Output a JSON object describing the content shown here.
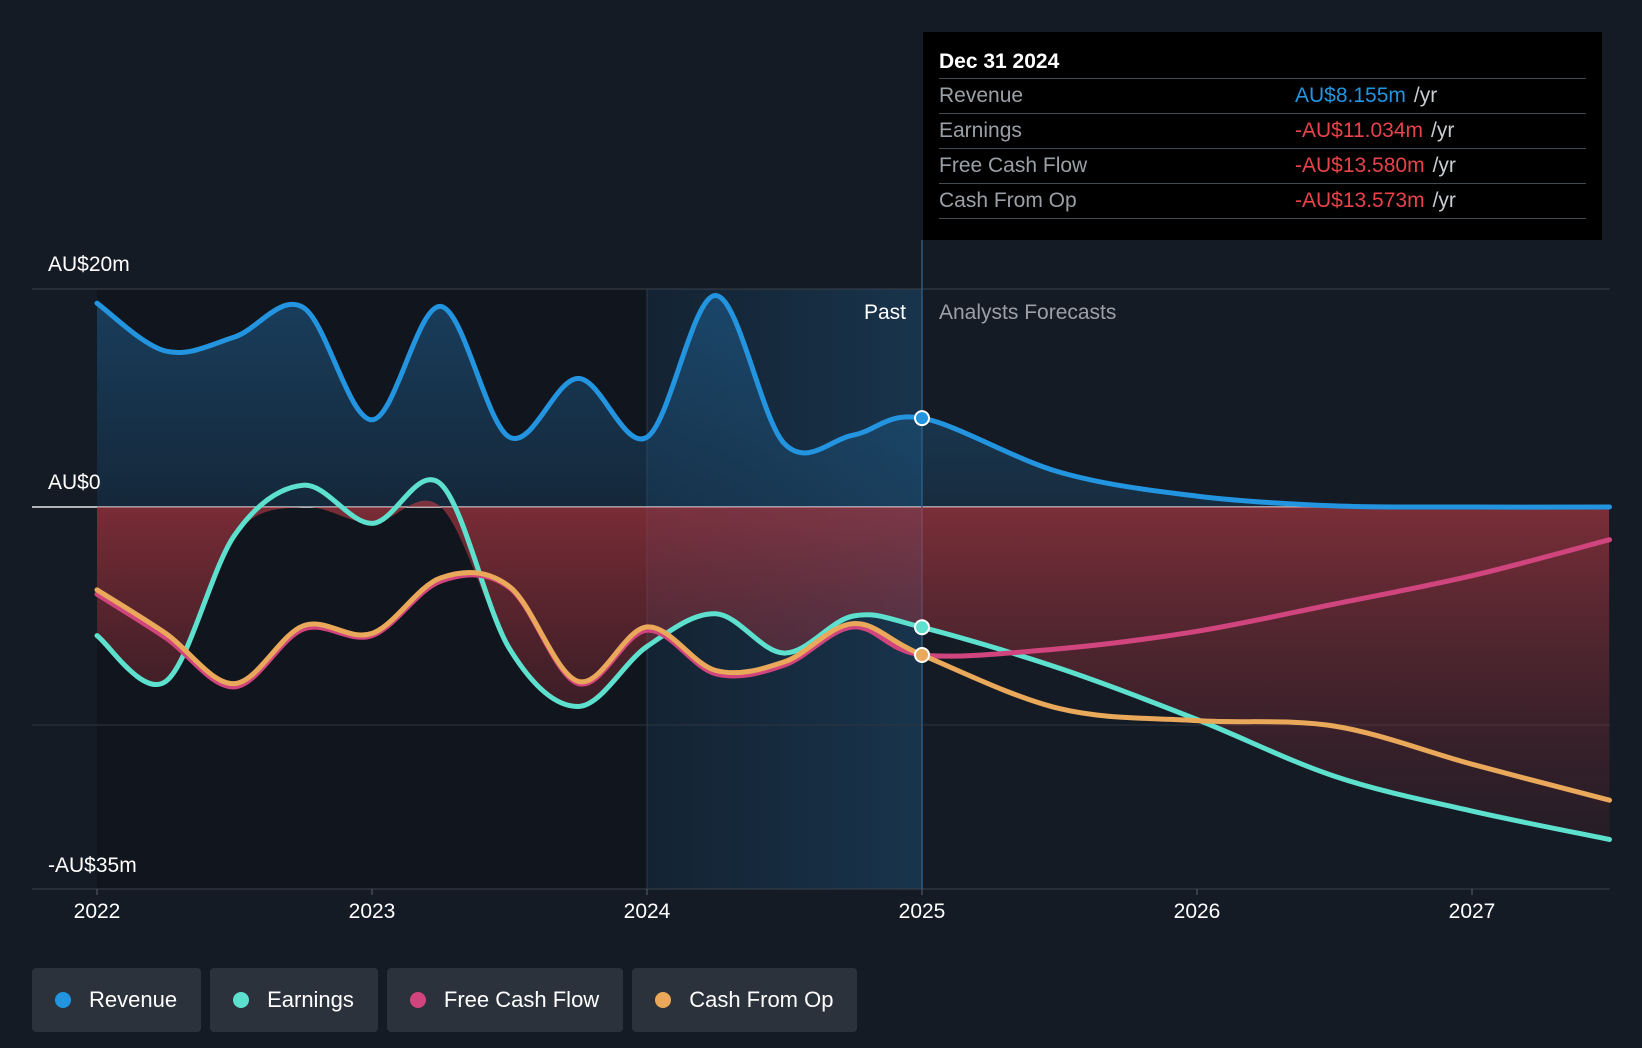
{
  "chart_data": {
    "type": "line",
    "title": "",
    "xlabel": "",
    "ylabel": "",
    "y_labels": {
      "top": "AU$20m",
      "zero": "AU$0",
      "bottom": "-AU$35m"
    },
    "ylim": [
      -35,
      20
    ],
    "xlim": [
      2021.77,
      2027.5
    ],
    "x_ticks": [
      {
        "value": 2022,
        "label": "2022"
      },
      {
        "value": 2023,
        "label": "2023"
      },
      {
        "value": 2024,
        "label": "2024"
      },
      {
        "value": 2025,
        "label": "2025"
      },
      {
        "value": 2026,
        "label": "2026"
      },
      {
        "value": 2027,
        "label": "2027"
      }
    ],
    "past_label": "Past",
    "forecast_label": "Analysts Forecasts",
    "divider_x": 2025,
    "series": [
      {
        "name": "Revenue",
        "color": "#2394df",
        "x": [
          2022,
          2022.25,
          2022.5,
          2022.75,
          2023,
          2023.25,
          2023.5,
          2023.75,
          2024,
          2024.25,
          2024.5,
          2024.75,
          2025,
          2025.5,
          2026,
          2026.5,
          2027,
          2027.5
        ],
        "values": [
          18.7,
          14.3,
          15.6,
          18.3,
          8.0,
          18.4,
          6.4,
          11.8,
          6.4,
          19.4,
          5.8,
          6.6,
          8.155,
          3.2,
          1.0,
          0.1,
          0.0,
          0.0
        ]
      },
      {
        "name": "Earnings",
        "color": "#5de0cd",
        "x": [
          2022,
          2022.25,
          2022.5,
          2022.75,
          2023,
          2023.25,
          2023.5,
          2023.75,
          2024,
          2024.25,
          2024.5,
          2024.75,
          2025,
          2025.5,
          2026,
          2026.5,
          2027,
          2027.5
        ],
        "values": [
          -11.8,
          -16.0,
          -2.6,
          2.0,
          -1.5,
          2.1,
          -13.0,
          -18.3,
          -12.8,
          -9.8,
          -13.4,
          -10.0,
          -11.034,
          -14.8,
          -19.5,
          -24.7,
          -27.9,
          -30.5
        ]
      },
      {
        "name": "Free Cash Flow",
        "color": "#d1457e",
        "x": [
          2022,
          2022.25,
          2022.5,
          2022.75,
          2023,
          2023.25,
          2023.5,
          2023.75,
          2024,
          2024.25,
          2024.5,
          2024.75,
          2025,
          2025.5,
          2026,
          2026.5,
          2027,
          2027.5
        ],
        "values": [
          -8.0,
          -12.0,
          -16.5,
          -11.2,
          -11.8,
          -6.8,
          -7.4,
          -16.2,
          -11.3,
          -15.3,
          -14.5,
          -11.0,
          -13.58,
          -13.0,
          -11.4,
          -8.9,
          -6.3,
          -3.0
        ]
      },
      {
        "name": "Cash From Op",
        "color": "#e9a85a",
        "x": [
          2022,
          2022.25,
          2022.5,
          2022.75,
          2023,
          2023.25,
          2023.5,
          2023.75,
          2024,
          2024.25,
          2024.5,
          2024.75,
          2025,
          2025.5,
          2026,
          2026.5,
          2027,
          2027.5
        ],
        "values": [
          -7.6,
          -11.6,
          -16.2,
          -10.9,
          -11.6,
          -6.5,
          -7.3,
          -16.0,
          -11.0,
          -15.0,
          -14.2,
          -10.7,
          -13.573,
          -18.5,
          -19.6,
          -20.1,
          -23.6,
          -26.9
        ]
      }
    ]
  },
  "tooltip": {
    "date": "Dec 31 2024",
    "unit": "/yr",
    "rows": [
      {
        "label": "Revenue",
        "value": "AU$8.155m",
        "color": "#2394df"
      },
      {
        "label": "Earnings",
        "value": "-AU$11.034m",
        "color": "#e8424a"
      },
      {
        "label": "Free Cash Flow",
        "value": "-AU$13.580m",
        "color": "#e8424a"
      },
      {
        "label": "Cash From Op",
        "value": "-AU$13.573m",
        "color": "#e8424a"
      }
    ]
  },
  "legend": [
    {
      "label": "Revenue",
      "color": "#2394df"
    },
    {
      "label": "Earnings",
      "color": "#5de0cd"
    },
    {
      "label": "Free Cash Flow",
      "color": "#d1457e"
    },
    {
      "label": "Cash From Op",
      "color": "#e9a85a"
    }
  ]
}
